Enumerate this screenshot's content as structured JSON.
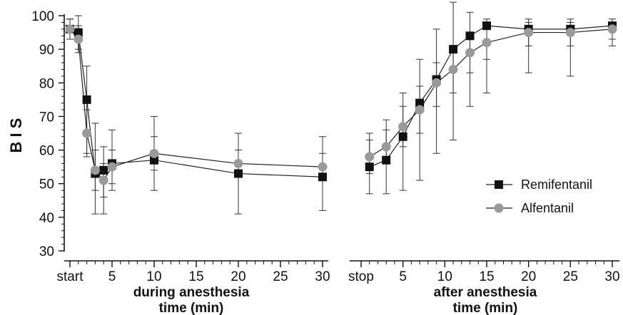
{
  "chart_data": [
    {
      "type": "line",
      "ylabel": "B I S",
      "xlabel": [
        "during anesthesia",
        "time (min)"
      ],
      "ylim": [
        30,
        100
      ],
      "yticks": [
        30,
        40,
        50,
        60,
        70,
        80,
        90,
        100
      ],
      "xlim": [
        0,
        30
      ],
      "xticks": [
        {
          "value": 0,
          "label": "start"
        },
        {
          "value": 5,
          "label": "5"
        },
        {
          "value": 10,
          "label": "10"
        },
        {
          "value": 15,
          "label": "15"
        },
        {
          "value": 20,
          "label": "20"
        },
        {
          "value": 25,
          "label": "25"
        },
        {
          "value": 30,
          "label": "30"
        }
      ],
      "x": [
        0,
        1,
        2,
        3,
        4,
        5,
        10,
        20,
        30
      ],
      "series": [
        {
          "name": "Remifentanil",
          "marker": "square",
          "color": "#111111",
          "values": [
            96,
            95,
            75,
            53,
            54,
            56,
            57,
            53,
            52
          ],
          "error_high": [
            99,
            100,
            85,
            68,
            61,
            66,
            70,
            65,
            64
          ],
          "error_low": [
            93,
            90,
            59,
            41,
            41,
            48,
            48,
            41,
            42
          ]
        },
        {
          "name": "Alfentanil",
          "marker": "circle",
          "color": "#9a9a9a",
          "values": [
            96,
            93,
            65,
            54,
            51,
            55,
            59,
            56,
            55
          ],
          "error_high": [
            99,
            97,
            72,
            60,
            56,
            60,
            64,
            60,
            59
          ],
          "error_low": [
            93,
            89,
            58,
            48,
            46,
            50,
            54,
            52,
            51
          ]
        }
      ]
    },
    {
      "type": "line",
      "xlabel": [
        "after anesthesia",
        "time (min)"
      ],
      "ylim": [
        30,
        100
      ],
      "xlim": [
        0,
        30
      ],
      "xticks": [
        {
          "value": 0,
          "label": "stop"
        },
        {
          "value": 5,
          "label": "5"
        },
        {
          "value": 10,
          "label": "10"
        },
        {
          "value": 15,
          "label": "15"
        },
        {
          "value": 20,
          "label": "20"
        },
        {
          "value": 25,
          "label": "25"
        },
        {
          "value": 30,
          "label": "30"
        }
      ],
      "x": [
        1,
        3,
        5,
        7,
        9,
        11,
        13,
        15,
        20,
        25,
        30
      ],
      "series": [
        {
          "name": "Remifentanil",
          "marker": "square",
          "color": "#111111",
          "values": [
            55,
            57,
            64,
            74,
            81,
            90,
            94,
            97,
            96,
            96,
            97
          ],
          "error_high": [
            65,
            69,
            77,
            87,
            96,
            104,
            101,
            99,
            99,
            99,
            99
          ],
          "error_low": [
            47,
            47,
            48,
            51,
            59,
            63,
            73,
            77,
            83,
            82,
            91
          ]
        },
        {
          "name": "Alfentanil",
          "marker": "circle",
          "color": "#9a9a9a",
          "values": [
            58,
            61,
            67,
            72,
            80,
            84,
            89,
            92,
            95,
            95,
            96
          ],
          "error_high": [
            63,
            66,
            73,
            79,
            86,
            91,
            94,
            96,
            98,
            98,
            98
          ],
          "error_low": [
            53,
            56,
            61,
            65,
            73,
            77,
            83,
            87,
            91,
            91,
            93
          ]
        }
      ],
      "legend": {
        "placement": "right",
        "entries": [
          {
            "label": "Remifentanil",
            "marker": "square"
          },
          {
            "label": "Alfentanil",
            "marker": "circle"
          }
        ]
      }
    }
  ]
}
